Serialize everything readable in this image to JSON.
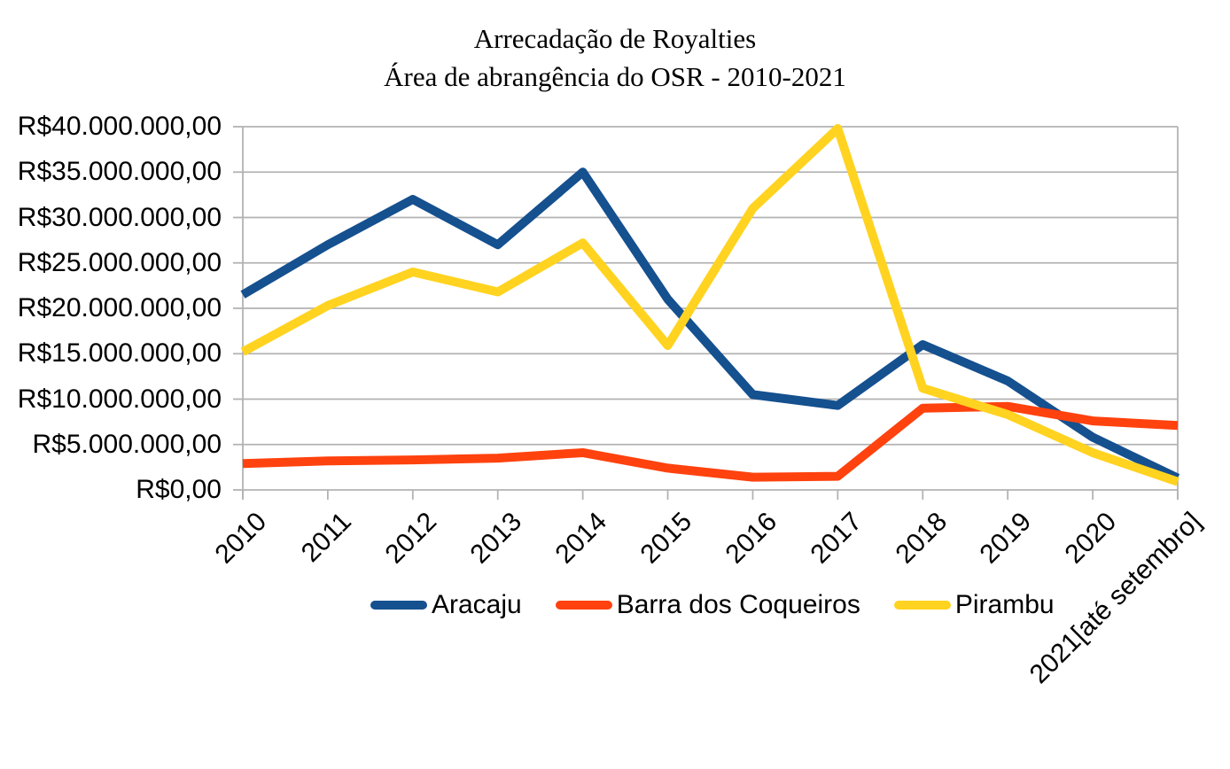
{
  "chart_data": {
    "type": "line",
    "title_lines": [
      "Arrecadação de Royalties",
      "Área de abrangência do OSR - 2010-2021"
    ],
    "xlabel": "",
    "ylabel": "",
    "ylim": [
      0,
      40000000
    ],
    "grid": "horizontal",
    "legend_position": "bottom",
    "categories": [
      "2010",
      "2011",
      "2012",
      "2013",
      "2014",
      "2015",
      "2016",
      "2017",
      "2018",
      "2019",
      "2020",
      "2021[até setembro]"
    ],
    "y_ticks": [
      {
        "value": 0,
        "label": "R$0,00"
      },
      {
        "value": 5000000,
        "label": "R$5.000.000,00"
      },
      {
        "value": 10000000,
        "label": "R$10.000.000,00"
      },
      {
        "value": 15000000,
        "label": "R$15.000.000,00"
      },
      {
        "value": 20000000,
        "label": "R$20.000.000,00"
      },
      {
        "value": 25000000,
        "label": "R$25.000.000,00"
      },
      {
        "value": 30000000,
        "label": "R$30.000.000,00"
      },
      {
        "value": 35000000,
        "label": "R$35.000.000,00"
      },
      {
        "value": 40000000,
        "label": "R$40.000.000,00"
      }
    ],
    "series": [
      {
        "name": "Aracaju",
        "color": "#15508F",
        "values": [
          21500000,
          27000000,
          32000000,
          27000000,
          35000000,
          21000000,
          10500000,
          9300000,
          16000000,
          12000000,
          5800000,
          1300000
        ]
      },
      {
        "name": "Barra dos Coqueiros",
        "color": "#FF420E",
        "values": [
          2900000,
          3200000,
          3300000,
          3500000,
          4100000,
          2400000,
          1400000,
          1500000,
          9000000,
          9200000,
          7600000,
          7100000
        ]
      },
      {
        "name": "Pirambu",
        "color": "#FFD320",
        "values": [
          15200000,
          20300000,
          24000000,
          21800000,
          27200000,
          15900000,
          31000000,
          39800000,
          11200000,
          8300000,
          4100000,
          900000
        ]
      }
    ]
  }
}
